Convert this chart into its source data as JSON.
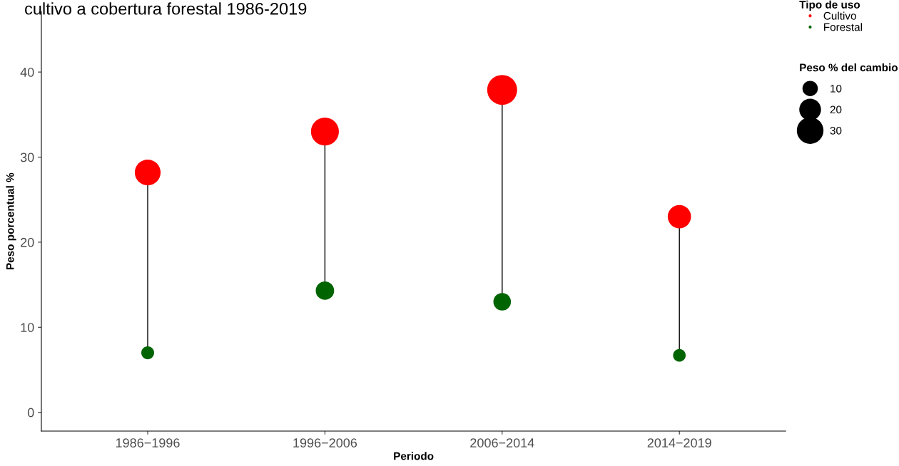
{
  "chart_data": {
    "type": "bubble",
    "title": "cultivo a cobertura forestal 1986-2019",
    "xlabel": "Periodo",
    "ylabel": "Peso porcentual %",
    "categories": [
      "1986−1996",
      "1996−2006",
      "2006−2014",
      "2014−2019"
    ],
    "ylim": [
      -2.2,
      47.1
    ],
    "yticks": [
      0,
      10,
      20,
      30,
      40
    ],
    "grid": false,
    "legend": "top right",
    "legend_title": "Tipo de uso",
    "size_legend": [
      10,
      20,
      30
    ],
    "annotations": [
      "Peso % del cambio"
    ],
    "series": [
      {
        "name": "Cultivo",
        "color": "#ff0000",
        "values": [
          28.2,
          33.0,
          37.9,
          23.0
        ],
        "sizes": [
          28.2,
          33.0,
          37.9,
          23.0
        ]
      },
      {
        "name": "Forestal",
        "color": "#006400",
        "values": [
          7.0,
          14.3,
          13.0,
          6.7
        ],
        "sizes": [
          7.0,
          14.3,
          13.0,
          6.7
        ]
      }
    ]
  }
}
